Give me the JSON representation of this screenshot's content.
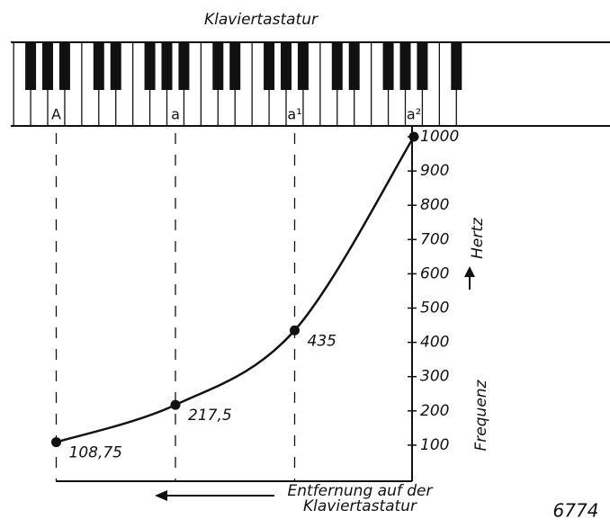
{
  "chart_data": {
    "type": "line",
    "title": "Klaviertastatur",
    "categories": [
      "A",
      "a",
      "a¹",
      "a²"
    ],
    "values": [
      108.75,
      217.5,
      435,
      1000
    ],
    "value_labels": [
      "108,75",
      "217,5",
      "435",
      null
    ],
    "color": "#111111",
    "ylim": [
      0,
      1000
    ],
    "yticks": [
      100,
      200,
      300,
      400,
      500,
      600,
      700,
      800,
      900,
      1000
    ],
    "y_label_unit": "Hertz",
    "y_label": "Frequenz",
    "x_label": "Entfernung auf der Klaviertastatur",
    "figure_number": "6774"
  }
}
